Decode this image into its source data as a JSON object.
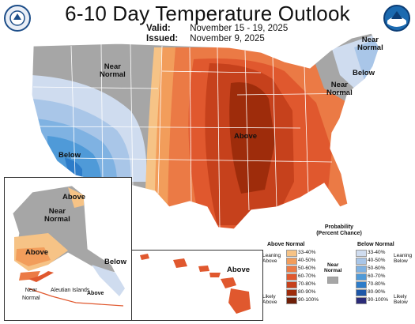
{
  "title": "6-10 Day Temperature Outlook",
  "valid": {
    "label": "Valid:",
    "value": "November 15 - 19, 2025"
  },
  "issued": {
    "label": "Issued:",
    "value": "November 9, 2025"
  },
  "logos": {
    "left": "doc-seal-icon",
    "right": "noaa-logo-icon"
  },
  "map_labels": {
    "near_normal_west": "Near\nNormal",
    "below_sw": "Below",
    "above_central": "Above",
    "near_normal_ne": "Near\nNormal",
    "below_ne": "Below",
    "near_normal_ne2": "Near\nNormal"
  },
  "alaska_labels": {
    "above_n": "Above",
    "near_normal": "Near\nNormal",
    "above_s": "Above",
    "below_se": "Below",
    "near_normal_sw": "Near\nNormal",
    "aleutian": "Aleutian Islands",
    "above_aleutian": "Above"
  },
  "hawaii_labels": {
    "above": "Above"
  },
  "legend": {
    "title": "Probability\n(Percent Chance)",
    "above_header": "Above Normal",
    "below_header": "Below Normal",
    "near_label": "Near\nNormal",
    "leaning_above": "Leaning\nAbove",
    "likely_above": "Likely\nAbove",
    "leaning_below": "Leaning\nBelow",
    "likely_below": "Likely\nBelow",
    "ranges": [
      "33-40%",
      "40-50%",
      "50-60%",
      "60-70%",
      "70-80%",
      "80-90%",
      "90-100%"
    ],
    "above_colors": [
      "#f6c386",
      "#f29d5b",
      "#eb7a45",
      "#e0582e",
      "#c6411c",
      "#9e2c0b",
      "#6e1e07"
    ],
    "below_colors": [
      "#cfdcef",
      "#a9c6e8",
      "#7fb2e2",
      "#4f9ad8",
      "#2d7cc9",
      "#1d57a8",
      "#2b2b78"
    ],
    "near_color": "#a6a6a6"
  },
  "colors": {
    "near": "#a6a6a6",
    "a33": "#f6c386",
    "a40": "#f29d5b",
    "a50": "#eb7a45",
    "a60": "#e0582e",
    "a70": "#c6411c",
    "a80": "#9e2c0b",
    "b33": "#cfdcef",
    "b40": "#a9c6e8",
    "b50": "#7fb2e2",
    "b60": "#4f9ad8",
    "b70": "#2d7cc9"
  }
}
